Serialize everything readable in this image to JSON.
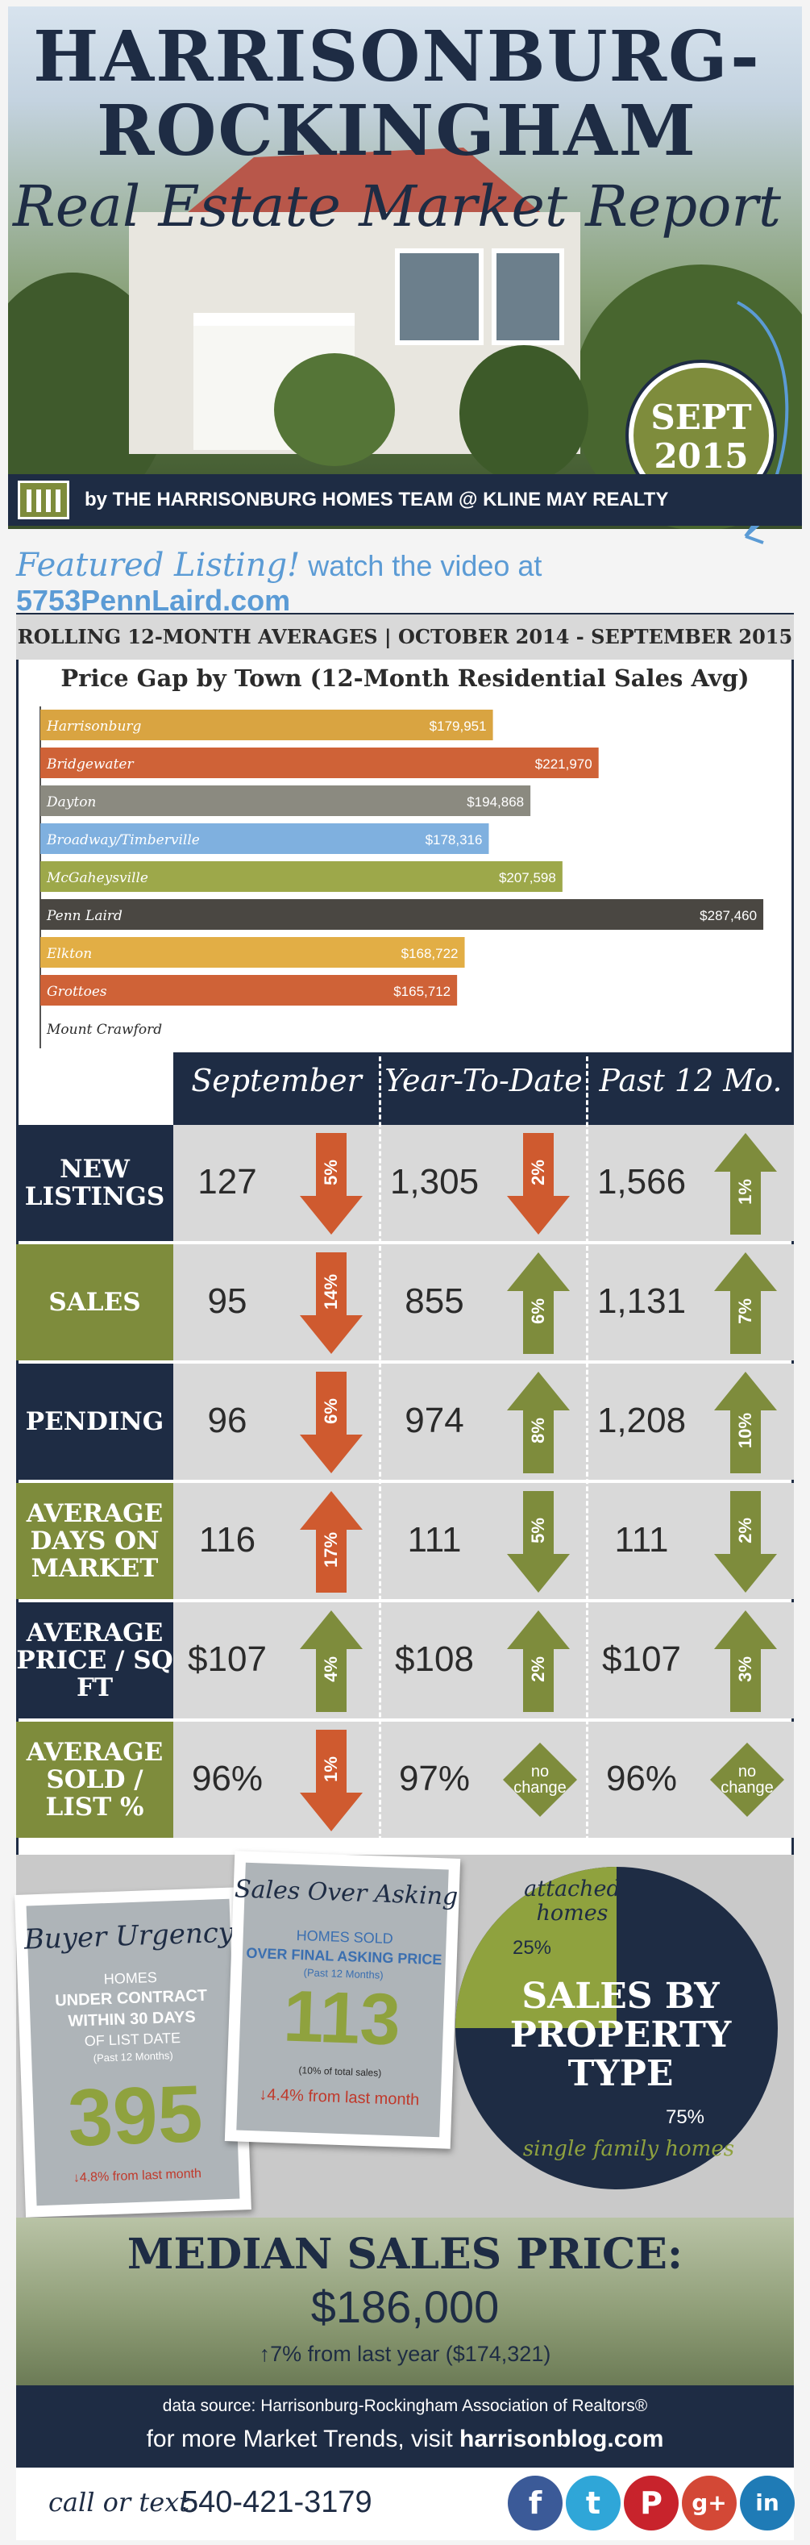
{
  "header": {
    "title_line1": "HARRISONBURG-",
    "title_line2": "ROCKINGHAM",
    "subtitle": "Real Estate Market Report",
    "badge_month": "SEPT",
    "badge_year": "2015",
    "byline": "by THE HARRISONBURG HOMES TEAM @ KLINE MAY REALTY"
  },
  "featured": {
    "label": "Featured Listing!",
    "text": "watch the video at",
    "url": "5753PennLaird.com"
  },
  "rolling_banner": "ROLLING 12-MONTH AVERAGES | OCTOBER 2014 - SEPTEMBER 2015",
  "chart_data": {
    "type": "bar",
    "orientation": "horizontal",
    "title": "Price Gap by Town (12-Month Residential Sales Avg)",
    "categories": [
      "Harrisonburg",
      "Bridgewater",
      "Dayton",
      "Broadway/Timberville",
      "McGaheysville",
      "Penn Laird",
      "Elkton",
      "Grottoes",
      "Mount Crawford"
    ],
    "values": [
      179951,
      221970,
      194868,
      178316,
      207598,
      287460,
      168722,
      165712,
      null
    ],
    "value_labels": [
      "$179,951",
      "$221,970",
      "$194,868",
      "$178,316",
      "$207,598",
      "$287,460",
      "$168,722",
      "$165,712",
      ""
    ],
    "colors": [
      "#d9a441",
      "#cf6237",
      "#8b8a80",
      "#7fb0df",
      "#9da84a",
      "#4a4742",
      "#e2ae45",
      "#cf6237",
      "#ffffff"
    ],
    "xlim": [
      0,
      290000
    ]
  },
  "stats": {
    "columns": [
      "September",
      "Year-To-Date",
      "Past 12 Mo."
    ],
    "rows": [
      {
        "label": "NEW LISTINGS",
        "label_bg": "#1e2c44",
        "cells": [
          {
            "value": "127",
            "dir": "down",
            "pct": "5%"
          },
          {
            "value": "1,305",
            "dir": "down",
            "pct": "2%"
          },
          {
            "value": "1,566",
            "dir": "up",
            "pct": "1%"
          }
        ]
      },
      {
        "label": "SALES",
        "label_bg": "#7e8c3c",
        "cells": [
          {
            "value": "95",
            "dir": "down",
            "pct": "14%"
          },
          {
            "value": "855",
            "dir": "up",
            "pct": "6%"
          },
          {
            "value": "1,131",
            "dir": "up",
            "pct": "7%"
          }
        ]
      },
      {
        "label": "PENDING",
        "label_bg": "#1e2c44",
        "cells": [
          {
            "value": "96",
            "dir": "down",
            "pct": "6%"
          },
          {
            "value": "974",
            "dir": "up",
            "pct": "8%"
          },
          {
            "value": "1,208",
            "dir": "up",
            "pct": "10%"
          }
        ]
      },
      {
        "label": "AVERAGE DAYS ON MARKET",
        "label_bg": "#7e8c3c",
        "cells": [
          {
            "value": "116",
            "dir": "up-red",
            "pct": "17%"
          },
          {
            "value": "111",
            "dir": "down-green",
            "pct": "5%"
          },
          {
            "value": "111",
            "dir": "down-green",
            "pct": "2%"
          }
        ]
      },
      {
        "label": "AVERAGE PRICE / SQ FT",
        "label_bg": "#1e2c44",
        "cells": [
          {
            "value": "$107",
            "dir": "up",
            "pct": "4%"
          },
          {
            "value": "$108",
            "dir": "up",
            "pct": "2%"
          },
          {
            "value": "$107",
            "dir": "up",
            "pct": "3%"
          }
        ]
      },
      {
        "label": "AVERAGE SOLD / LIST %",
        "label_bg": "#7e8c3c",
        "cells": [
          {
            "value": "96%",
            "dir": "down",
            "pct": "1%"
          },
          {
            "value": "97%",
            "dir": "none",
            "pct": "no change"
          },
          {
            "value": "96%",
            "dir": "none",
            "pct": "no change"
          }
        ]
      }
    ]
  },
  "buyer_urgency": {
    "title": "Buyer Urgency",
    "line1": "HOMES",
    "line2": "UNDER CONTRACT",
    "line3": "WITHIN 30 DAYS",
    "line4": "OF LIST DATE",
    "line5": "(Past 12 Months)",
    "value": "395",
    "change": "↓4.8% from last month"
  },
  "over_asking": {
    "title": "Sales Over Asking",
    "line1": "HOMES SOLD",
    "line2": "OVER FINAL ASKING PRICE",
    "line3": "(Past 12 Months)",
    "value": "113",
    "note": "(10% of total sales)",
    "change": "↓4.4% from last month"
  },
  "property_type": {
    "title_line1": "SALES BY",
    "title_line2": "PROPERTY",
    "title_line3": "TYPE",
    "attached_label": "attached homes",
    "attached_pct": "25%",
    "attached_value": 25,
    "single_label": "single family homes",
    "single_pct": "75%",
    "single_value": 75
  },
  "median": {
    "title": "MEDIAN SALES PRICE:",
    "value": "$186,000",
    "change": "↑7% from last year ($174,321)"
  },
  "footer": {
    "source": "data source: Harrisonburg-Rockingham Association of Realtors®",
    "more_prefix": "for more Market Trends, visit",
    "more_site": "harrisonblog.com"
  },
  "contact": {
    "label": "call or text:",
    "phone": "540-421-3179"
  },
  "social": [
    {
      "name": "facebook-icon",
      "glyph": "f",
      "color": "#3b5a98"
    },
    {
      "name": "twitter-icon",
      "glyph": "t",
      "color": "#2fa6d8"
    },
    {
      "name": "pinterest-icon",
      "glyph": "P",
      "color": "#c8232c"
    },
    {
      "name": "google-plus-icon",
      "glyph": "g+",
      "color": "#d34836"
    },
    {
      "name": "linkedin-icon",
      "glyph": "in",
      "color": "#1f7bb6"
    }
  ]
}
